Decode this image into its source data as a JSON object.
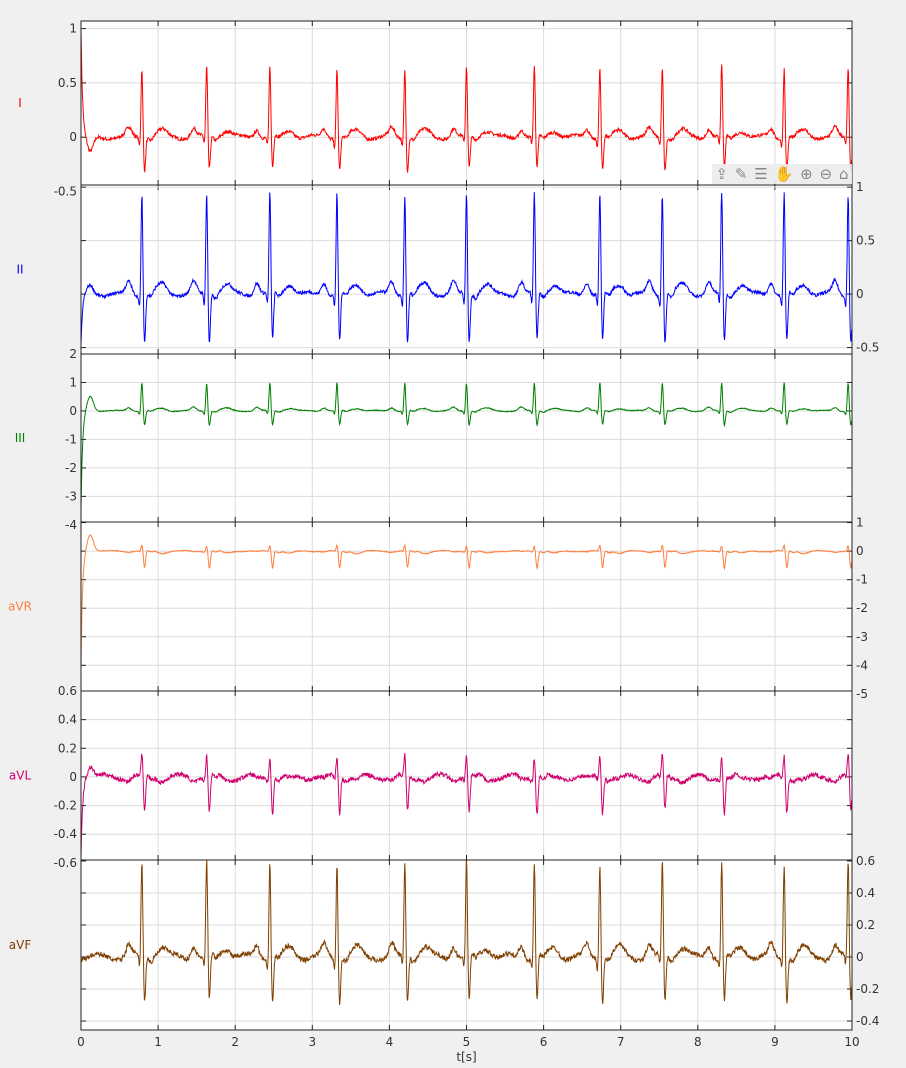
{
  "chart_data": {
    "type": "line",
    "xlabel": "t[s]",
    "xlim": [
      0,
      10
    ],
    "xticks": [
      "0",
      "1",
      "2",
      "3",
      "4",
      "5",
      "6",
      "7",
      "8",
      "9",
      "10"
    ],
    "grid": true,
    "beat_times_s": [
      0.79,
      1.63,
      2.45,
      3.32,
      4.2,
      5.0,
      5.88,
      6.73,
      7.54,
      8.31,
      9.12,
      9.95
    ],
    "panels": [
      {
        "name": "I",
        "color": "#ff0000",
        "ylim": [
          -0.44,
          1.07
        ],
        "yaxis": "left",
        "yticks": [
          "1",
          "0.5",
          "0",
          "-0.5"
        ],
        "ytick_values": [
          1,
          0.5,
          0,
          -0.5
        ],
        "r_peak": 0.65,
        "s_trough": -0.3,
        "start_value": 1.0
      },
      {
        "name": "II",
        "color": "#0000ff",
        "ylim": [
          -0.56,
          1.02
        ],
        "yaxis": "right",
        "yticks": [
          "1",
          "0.5",
          "0",
          "-0.5"
        ],
        "ytick_values": [
          1,
          0.5,
          0,
          -0.5
        ],
        "r_peak": 0.95,
        "s_trough": -0.45,
        "start_value": -0.5
      },
      {
        "name": "III",
        "color": "#008000",
        "ylim": [
          -3.9,
          2.0
        ],
        "yaxis": "left",
        "yticks": [
          "2",
          "1",
          "0",
          "-1",
          "-2",
          "-3",
          "-4"
        ],
        "ytick_values": [
          2,
          1,
          0,
          -1,
          -2,
          -3,
          -4
        ],
        "r_peak": 1.0,
        "s_trough": -0.5,
        "start_value": -3.5
      },
      {
        "name": "aVR",
        "color": "#ff7f3f",
        "ylim": [
          -4.9,
          1.02
        ],
        "yaxis": "right",
        "yticks": [
          "1",
          "0",
          "-1",
          "-2",
          "-3",
          "-4",
          "-5"
        ],
        "ytick_values": [
          1,
          0,
          -1,
          -2,
          -3,
          -4,
          -5
        ],
        "r_peak": 0.2,
        "s_trough": -0.6,
        "start_value": -4.0
      },
      {
        "name": "aVL",
        "color": "#d0006f",
        "ylim": [
          -0.58,
          0.6
        ],
        "yaxis": "left",
        "yticks": [
          "0.6",
          "0.4",
          "0.2",
          "0",
          "-0.2",
          "-0.4",
          "-0.6"
        ],
        "ytick_values": [
          0.6,
          0.4,
          0.2,
          0,
          -0.2,
          -0.4,
          -0.6
        ],
        "r_peak": 0.15,
        "s_trough": -0.25,
        "start_value": -0.55
      },
      {
        "name": "aVF",
        "color": "#7f4000",
        "ylim": [
          -0.456,
          0.606
        ],
        "yaxis": "right",
        "yticks": [
          "0.6",
          "0.4",
          "0.2",
          "0",
          "-0.2",
          "-0.4"
        ],
        "ytick_values": [
          0.6,
          0.4,
          0.2,
          0,
          -0.2,
          -0.4
        ],
        "r_peak": 0.6,
        "s_trough": -0.28,
        "start_value": 0.0
      }
    ]
  },
  "toolbar": {
    "icons": [
      "export-icon",
      "brush-icon",
      "data-tips-icon",
      "pan-icon",
      "zoom-in-icon",
      "zoom-out-icon",
      "home-icon"
    ],
    "glyphs": [
      "⇪",
      "✎",
      "☰",
      "✋",
      "⊕",
      "⊖",
      "⌂"
    ]
  }
}
